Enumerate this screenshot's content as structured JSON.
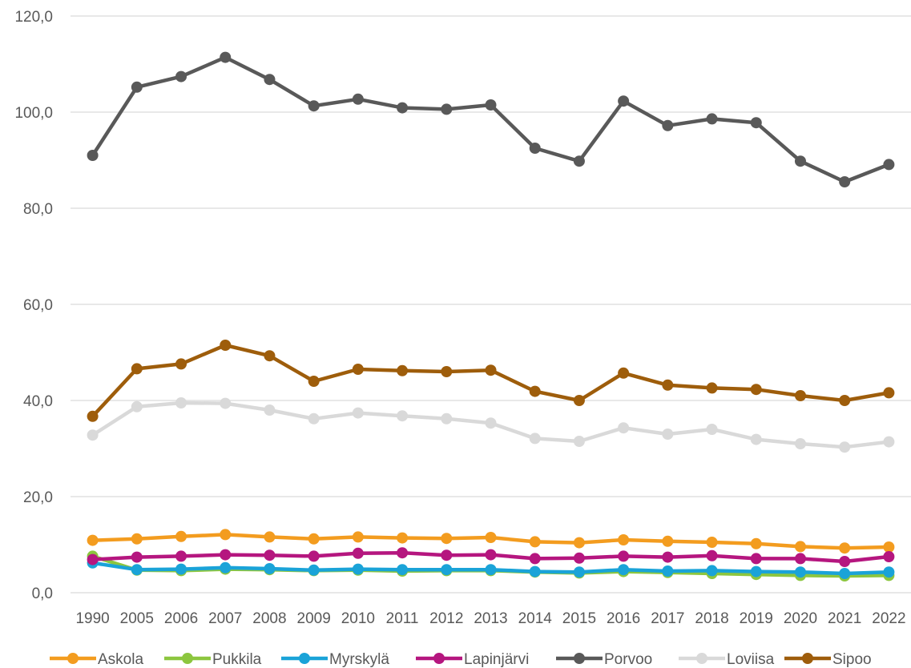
{
  "chart_data": {
    "type": "line",
    "title": "",
    "xlabel": "",
    "ylabel": "",
    "categories": [
      "1990",
      "2005",
      "2006",
      "2007",
      "2008",
      "2009",
      "2010",
      "2011",
      "2012",
      "2013",
      "2014",
      "2015",
      "2016",
      "2017",
      "2018",
      "2019",
      "2020",
      "2021",
      "2022"
    ],
    "ylim": [
      0,
      120
    ],
    "yticks": [
      0,
      20,
      40,
      60,
      80,
      100,
      120
    ],
    "ytick_labels": [
      "0,0",
      "20,0",
      "40,0",
      "60,0",
      "80,0",
      "100,0",
      "120,0"
    ],
    "grid": "horizontal",
    "legend_position": "bottom",
    "series": [
      {
        "name": "Askola",
        "color": "#F39C1F",
        "values": [
          10.9,
          11.2,
          11.7,
          12.1,
          11.6,
          11.2,
          11.6,
          11.4,
          11.3,
          11.5,
          10.6,
          10.4,
          11.0,
          10.7,
          10.5,
          10.2,
          9.6,
          9.3,
          9.5
        ]
      },
      {
        "name": "Pukkila",
        "color": "#8CC63F",
        "values": [
          7.6,
          4.7,
          4.6,
          4.9,
          4.8,
          4.6,
          4.7,
          4.5,
          4.6,
          4.6,
          4.3,
          4.1,
          4.4,
          4.2,
          4.0,
          3.8,
          3.6,
          3.5,
          3.6
        ]
      },
      {
        "name": "Myrskylä",
        "color": "#1AA3D8",
        "values": [
          6.2,
          4.8,
          4.9,
          5.2,
          5.0,
          4.7,
          4.9,
          4.8,
          4.8,
          4.8,
          4.4,
          4.3,
          4.8,
          4.5,
          4.6,
          4.4,
          4.3,
          4.0,
          4.3
        ]
      },
      {
        "name": "Lapinjärvi",
        "color": "#B5167F",
        "values": [
          6.9,
          7.4,
          7.6,
          7.9,
          7.8,
          7.6,
          8.2,
          8.3,
          7.8,
          7.9,
          7.1,
          7.2,
          7.6,
          7.4,
          7.7,
          7.1,
          7.1,
          6.5,
          7.5
        ]
      },
      {
        "name": "Porvoo",
        "color": "#595959",
        "values": [
          91.0,
          105.2,
          107.4,
          111.4,
          106.8,
          101.3,
          102.7,
          100.9,
          100.6,
          101.5,
          92.5,
          89.8,
          102.3,
          97.2,
          98.6,
          97.8,
          89.8,
          85.5,
          89.1
        ]
      },
      {
        "name": "Loviisa",
        "color": "#D9D9D9",
        "values": [
          32.8,
          38.7,
          39.5,
          39.4,
          38.0,
          36.2,
          37.4,
          36.8,
          36.2,
          35.3,
          32.1,
          31.5,
          34.3,
          33.0,
          34.0,
          31.9,
          31.0,
          30.3,
          31.4
        ]
      },
      {
        "name": "Sipoo",
        "color": "#9E5D0B",
        "values": [
          36.7,
          46.6,
          47.6,
          51.5,
          49.3,
          44.0,
          46.5,
          46.2,
          46.0,
          46.3,
          41.9,
          40.0,
          45.7,
          43.2,
          42.6,
          42.3,
          41.0,
          40.0,
          41.6
        ]
      }
    ]
  }
}
